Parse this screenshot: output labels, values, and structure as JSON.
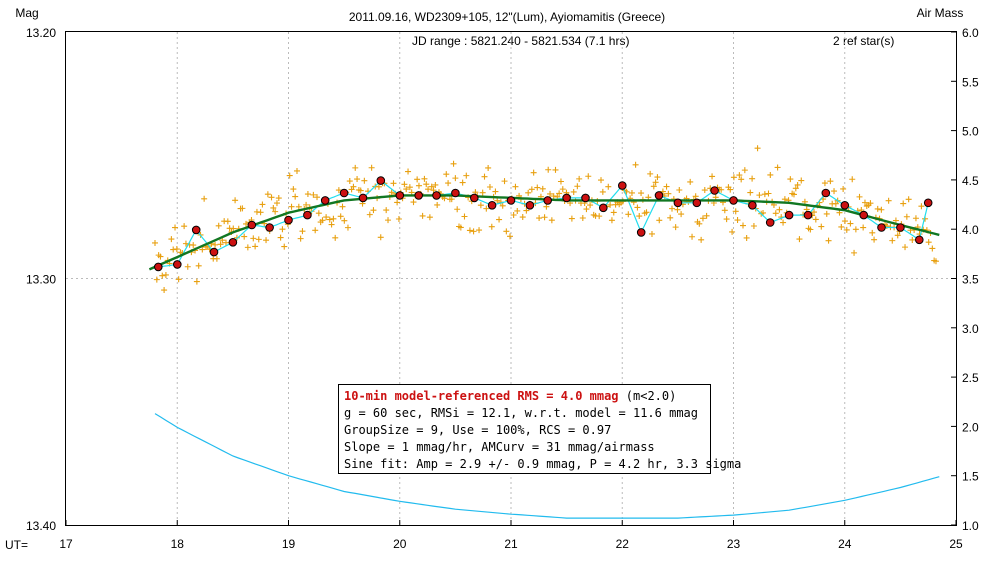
{
  "chart_data": {
    "type": "scatter",
    "title": "2011.09.16, WD2309+105, 12\"(Lum), Ayiomamitis (Greece)",
    "jd_range": "JD range : 5821.240 - 5821.534 (7.1 hrs)",
    "ref_stars": "2 ref star(s)",
    "left_axis_label": "Mag",
    "right_axis_label": "Air Mass",
    "x_axis_label": "UT=",
    "xlim": [
      17,
      25
    ],
    "ylim_mag": [
      13.4,
      13.2
    ],
    "ylim_airmass": [
      1.0,
      6.0
    ],
    "x_ticks": [
      "17",
      "18",
      "19",
      "20",
      "21",
      "22",
      "23",
      "24",
      "25"
    ],
    "y_ticks_mag": [
      "13.20",
      "13.30",
      "13.40"
    ],
    "y_ticks_airmass": [
      "1.0",
      "1.5",
      "2.0",
      "2.5",
      "3.0",
      "3.5",
      "4.0",
      "4.5",
      "5.0",
      "5.5",
      "6.0"
    ],
    "grid": true,
    "binned_points": {
      "name": "10-min averages",
      "x": [
        17.83,
        18.0,
        18.17,
        18.33,
        18.5,
        18.67,
        18.83,
        19.0,
        19.17,
        19.33,
        19.5,
        19.67,
        19.83,
        20.0,
        20.17,
        20.33,
        20.5,
        20.67,
        20.83,
        21.0,
        21.17,
        21.33,
        21.5,
        21.67,
        21.83,
        22.0,
        22.17,
        22.33,
        22.5,
        22.67,
        22.83,
        23.0,
        23.17,
        23.33,
        23.5,
        23.67,
        23.83,
        24.0,
        24.17,
        24.33,
        24.5,
        24.67,
        24.75
      ],
      "y": [
        13.2953,
        13.2943,
        13.2803,
        13.2893,
        13.2853,
        13.2783,
        13.2793,
        13.2763,
        13.2743,
        13.2683,
        13.2653,
        13.2673,
        13.2603,
        13.2663,
        13.2663,
        13.2663,
        13.2653,
        13.2673,
        13.2703,
        13.2683,
        13.2703,
        13.2683,
        13.2673,
        13.2673,
        13.2713,
        13.2623,
        13.2813,
        13.2663,
        13.2693,
        13.2693,
        13.2643,
        13.2683,
        13.2703,
        13.2773,
        13.2743,
        13.2743,
        13.2653,
        13.2703,
        13.2743,
        13.2793,
        13.2793,
        13.2843,
        13.2693
      ]
    },
    "model_curve": {
      "name": "model",
      "x": [
        17.75,
        18.0,
        18.5,
        19.0,
        19.5,
        20.0,
        20.5,
        21.0,
        21.5,
        22.0,
        22.5,
        23.0,
        23.5,
        24.0,
        24.5,
        24.85
      ],
      "y": [
        13.2963,
        13.2913,
        13.2813,
        13.2733,
        13.2683,
        13.2663,
        13.2663,
        13.2673,
        13.2683,
        13.2683,
        13.2683,
        13.2683,
        13.2693,
        13.2723,
        13.2783,
        13.2823
      ]
    },
    "airmass_curve": {
      "name": "airmass",
      "x": [
        17.8,
        18.0,
        18.5,
        19.0,
        19.5,
        20.0,
        20.5,
        21.0,
        21.5,
        22.0,
        22.5,
        23.0,
        23.5,
        24.0,
        24.5,
        24.85
      ],
      "y": [
        2.13,
        1.99,
        1.7,
        1.5,
        1.34,
        1.24,
        1.16,
        1.11,
        1.07,
        1.07,
        1.07,
        1.1,
        1.15,
        1.25,
        1.38,
        1.49
      ]
    },
    "stats_box": {
      "headline": "10-min model-referenced RMS = 4.0 mmag",
      "headline_suffix": " (m<2.0)",
      "lines": [
        "g = 60 sec, RMSi = 12.1, w.r.t. model = 11.6 mmag",
        "GroupSize = 9, Use = 100%, RCS = 0.97",
        "Slope = 1 mmag/hr, AMCurv = 31 mmag/airmass",
        "Sine fit: Amp = 2.9 +/- 0.9 mmag, P = 4.2 hr, 3.3 sigma"
      ]
    },
    "colors": {
      "raw_points": "#e8a010",
      "binned_fill": "#cc1111",
      "model_line": "#117722",
      "fit_line": "#22ddee",
      "airmass_line": "#22bbee",
      "headline_text": "#cc1111",
      "jd_text": "#1a1aa8",
      "grid": "#bbbbbb"
    }
  }
}
